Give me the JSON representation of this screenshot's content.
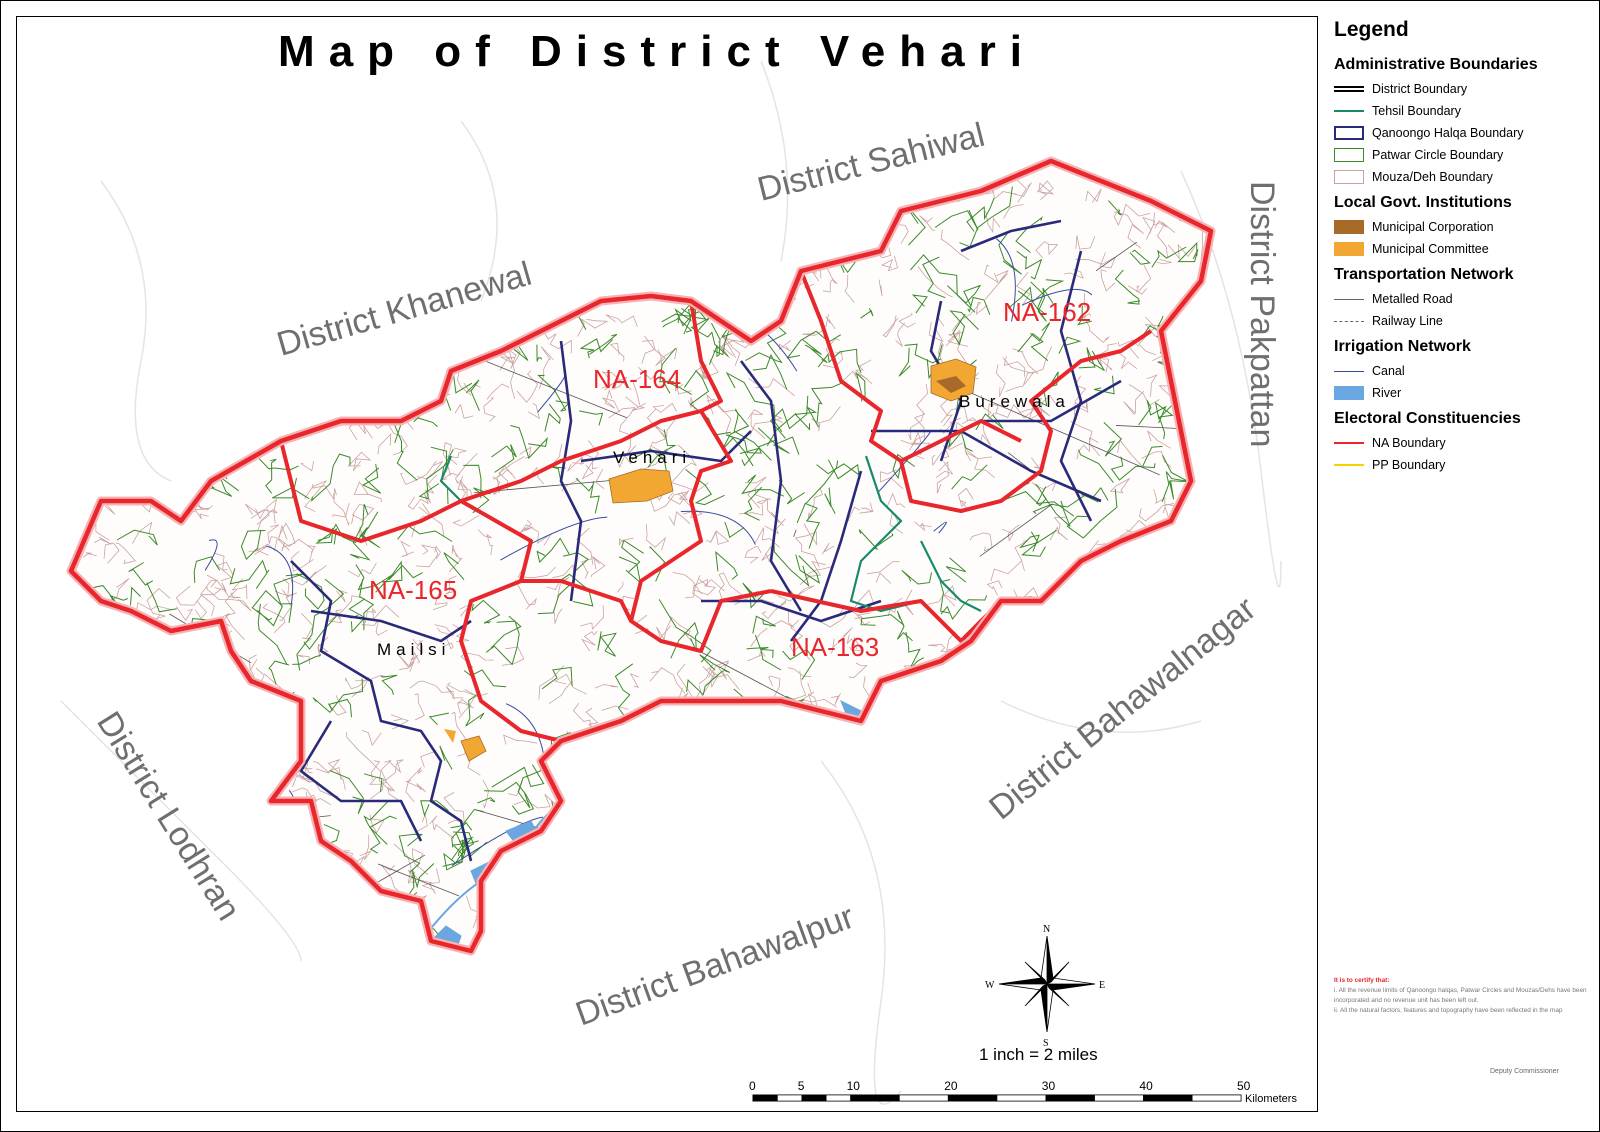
{
  "title": "Map of District Vehari",
  "neighbors": {
    "sahiwal": "District Sahiwal",
    "khanewal": "District Khanewal",
    "pakpattan": "District Pakpattan",
    "bahawalnagar": "District Bahawalnagar",
    "lodhran": "District Lodhran",
    "bahawalpur": "District  Bahawalpur"
  },
  "constituencies": {
    "na162": "NA-162",
    "na163": "NA-163",
    "na164": "NA-164",
    "na165": "NA-165"
  },
  "towns": {
    "burewala": "Burewala",
    "vehari": "Vehari",
    "mailsi": "Mailsi"
  },
  "compass": {
    "n": "N",
    "s": "S",
    "e": "E",
    "w": "W"
  },
  "scale": {
    "ratio": "1 inch = 2 miles",
    "ticks": [
      "0",
      "5",
      "10",
      "20",
      "30",
      "40",
      "50"
    ],
    "unit": "Kilometers"
  },
  "legend": {
    "title": "Legend",
    "sections": [
      {
        "heading": "Administrative Boundaries",
        "items": [
          {
            "label": "District Boundary"
          },
          {
            "label": "Tehsil Boundary"
          },
          {
            "label": "Qanoongo Halqa Boundary"
          },
          {
            "label": "Patwar Circle Boundary"
          },
          {
            "label": "Mouza/Deh Boundary"
          }
        ]
      },
      {
        "heading": "Local Govt. Institutions",
        "items": [
          {
            "label": "Municipal Corporation"
          },
          {
            "label": "Municipal Committee"
          }
        ]
      },
      {
        "heading": "Transportation Network",
        "items": [
          {
            "label": "Metalled Road"
          },
          {
            "label": "Railway Line"
          }
        ]
      },
      {
        "heading": "Irrigation Network",
        "items": [
          {
            "label": "Canal"
          },
          {
            "label": "River"
          }
        ]
      },
      {
        "heading": "Electoral Constituencies",
        "items": [
          {
            "label": "NA Boundary"
          },
          {
            "label": "PP Boundary"
          }
        ]
      }
    ]
  },
  "colors": {
    "na_boundary": "#e8262b",
    "pp_boundary": "#f6d300",
    "qanoongo": "#2a2a7a",
    "patwar": "#3a8a2a",
    "tehsil": "#178a6a",
    "mouza": "#c9a3a3",
    "municipal_corporation": "#a86a28",
    "municipal_committee": "#f3a733",
    "river": "#6aa6df",
    "neighbor_text": "#6f6f6f"
  },
  "certification": {
    "heading": "It is to certify that:",
    "lines": [
      "i.  All the revenue limits of Qanoongo halqas, Patwar Circles and Mouzas/Dehs have been incorporated and no revenue unit has been left out.",
      "ii. All the natural factors, features and topography have been reflected in the map"
    ]
  },
  "signature": "Deputy Commissioner"
}
